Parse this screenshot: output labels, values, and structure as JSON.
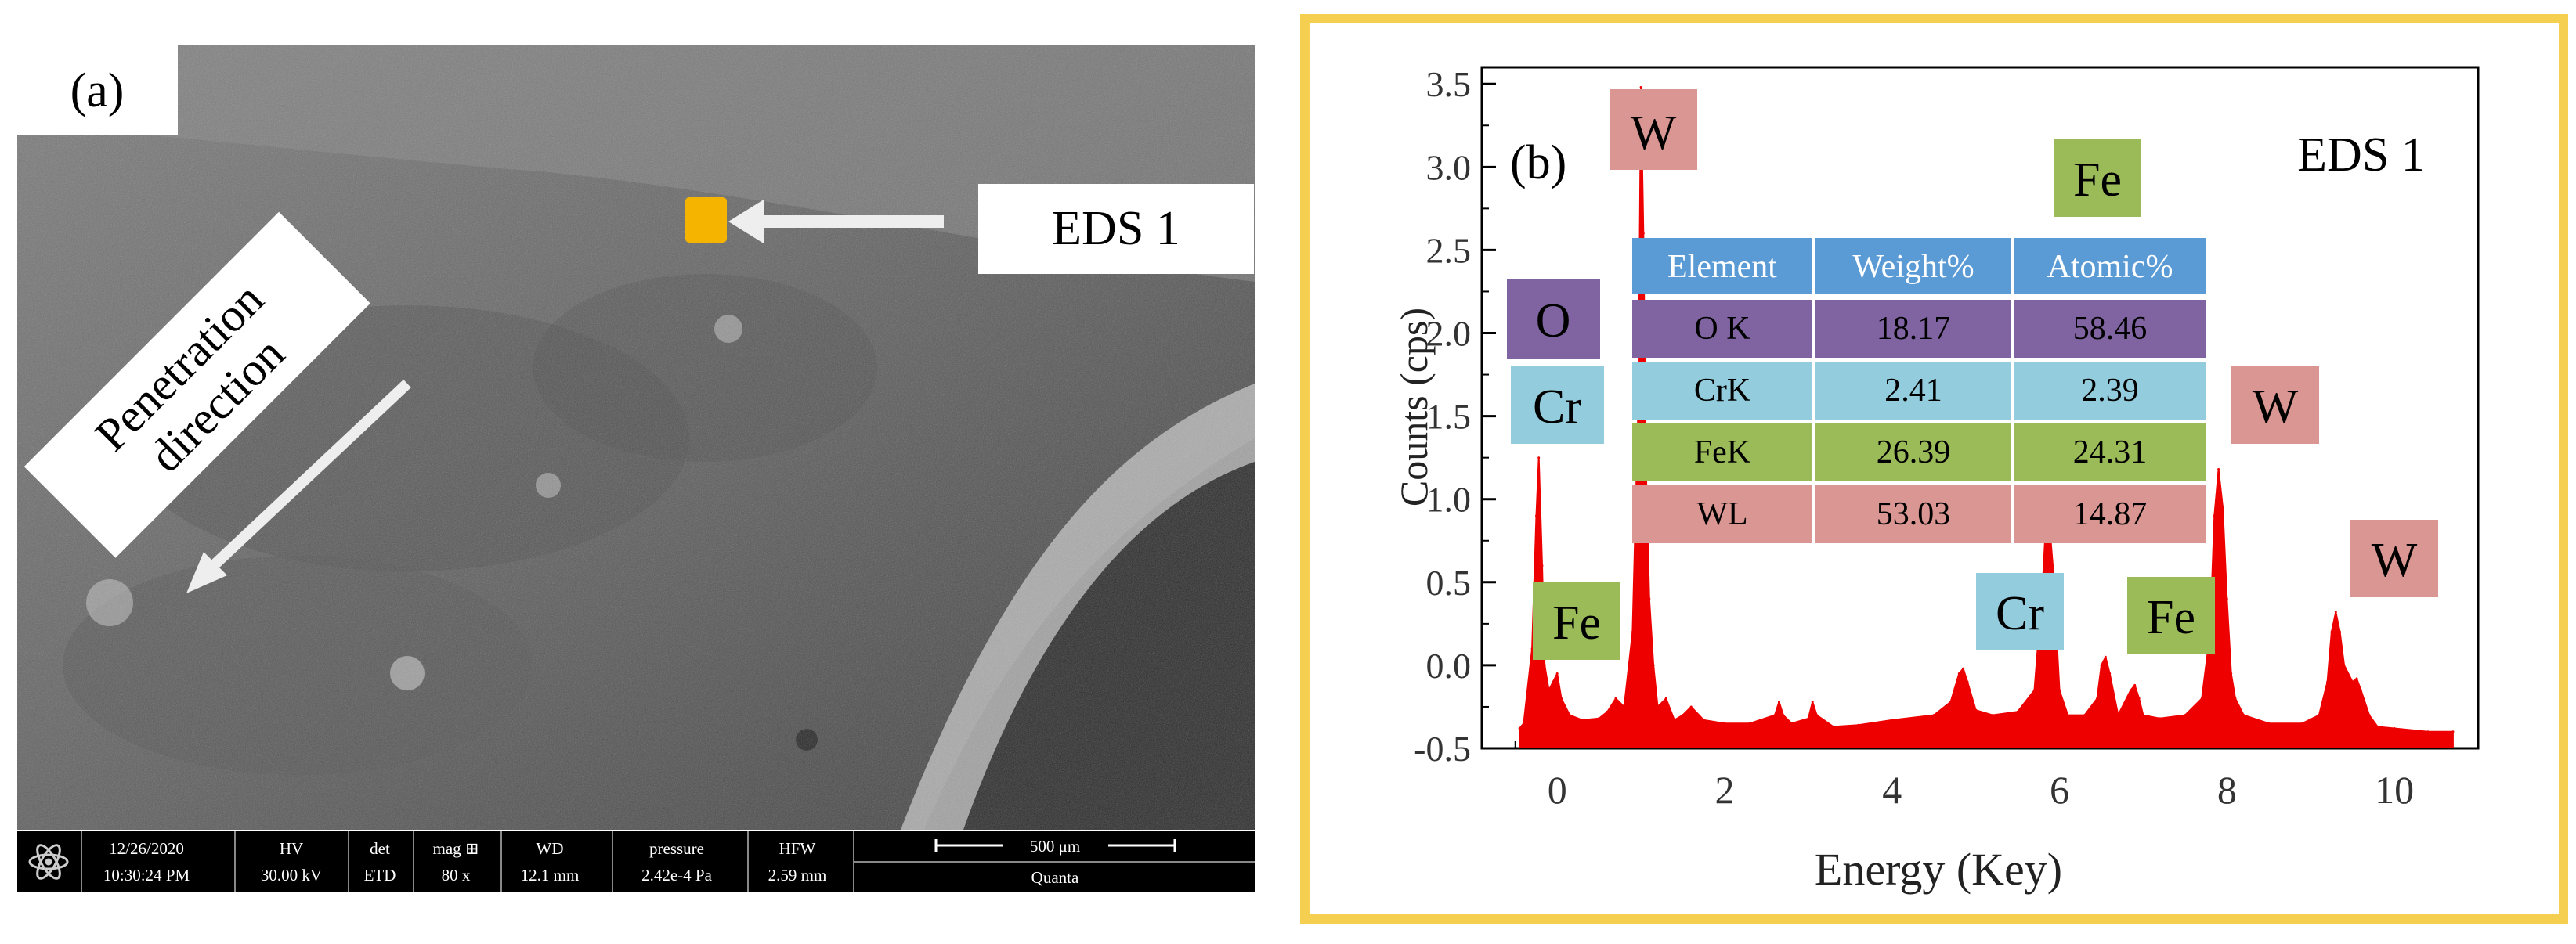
{
  "panel_a": {
    "label": "(a)",
    "eds_label": "EDS 1",
    "penetration_line1": "Penetration",
    "penetration_line2": "direction",
    "colors": {
      "marker": "#f4b400",
      "arrow": "#eeeeee"
    },
    "info_bar": {
      "icon": "atom-icon",
      "cells": [
        {
          "header": "12/26/2020",
          "value": "10:30:24 PM"
        },
        {
          "header": "HV",
          "value": "30.00 kV"
        },
        {
          "header": "det",
          "value": "ETD"
        },
        {
          "header": "mag ⊞",
          "value": "80 x"
        },
        {
          "header": "WD",
          "value": "12.1 mm"
        },
        {
          "header": "pressure",
          "value": "2.42e-4 Pa"
        },
        {
          "header": "HFW",
          "value": "2.59 mm"
        }
      ],
      "scale_label": "500 μm",
      "instrument": "Quanta"
    }
  },
  "panel_b": {
    "label": "(b)",
    "title": "EDS 1",
    "border_color": "#f5cf4f",
    "peak_labels": [
      {
        "text": "W",
        "color": "#d99692"
      },
      {
        "text": "Fe",
        "color": "#9bbb59"
      },
      {
        "text": "O",
        "color": "#8064a2"
      },
      {
        "text": "Cr",
        "color": "#93cddd"
      },
      {
        "text": "W",
        "color": "#d99692"
      },
      {
        "text": "Fe",
        "color": "#9bbb59"
      },
      {
        "text": "Cr",
        "color": "#93cddd"
      },
      {
        "text": "Fe",
        "color": "#9bbb59"
      },
      {
        "text": "W",
        "color": "#d99692"
      }
    ],
    "table": {
      "headers": [
        "Element",
        "Weight%",
        "Atomic%"
      ],
      "header_color": "#5b9bd5",
      "rows": [
        {
          "cells": [
            "O K",
            "18.17",
            "58.46"
          ],
          "color": "#8064a2"
        },
        {
          "cells": [
            "CrK",
            "2.41",
            "2.39"
          ],
          "color": "#93cddd"
        },
        {
          "cells": [
            "FeK",
            "26.39",
            "24.31"
          ],
          "color": "#9bbb59"
        },
        {
          "cells": [
            "WL",
            "53.03",
            "14.87"
          ],
          "color": "#d99692"
        }
      ]
    }
  },
  "chart_data": {
    "type": "area",
    "xlabel": "Energy (Key)",
    "ylabel": "Counts (cps)",
    "xlim": [
      -0.9,
      11.0
    ],
    "ylim": [
      -0.5,
      3.6
    ],
    "xticks": [
      "0",
      "2",
      "4",
      "6",
      "8",
      "10"
    ],
    "yticks": [
      "-0.5",
      "0.0",
      "0.5",
      "1.0",
      "1.5",
      "2.0",
      "2.5",
      "3.0",
      "3.5"
    ],
    "series": [
      {
        "color": "#ee0000",
        "x": [
          -0.45,
          -0.4,
          -0.3,
          -0.25,
          -0.22,
          -0.18,
          -0.15,
          -0.1,
          -0.05,
          0.0,
          0.05,
          0.15,
          0.3,
          0.5,
          0.6,
          0.7,
          0.8,
          0.9,
          0.97,
          1.0,
          1.03,
          1.06,
          1.1,
          1.15,
          1.2,
          1.3,
          1.4,
          1.5,
          1.6,
          1.75,
          2.0,
          2.3,
          2.6,
          2.65,
          2.7,
          2.8,
          3.0,
          3.05,
          3.1,
          3.3,
          3.6,
          4.0,
          4.5,
          4.7,
          4.8,
          4.85,
          4.9,
          5.0,
          5.2,
          5.5,
          5.7,
          5.8,
          5.85,
          5.88,
          5.92,
          6.0,
          6.1,
          6.3,
          6.45,
          6.5,
          6.55,
          6.6,
          6.7,
          6.85,
          6.9,
          6.95,
          7.0,
          7.2,
          7.5,
          7.7,
          7.8,
          7.85,
          7.9,
          7.95,
          8.0,
          8.05,
          8.1,
          8.2,
          8.5,
          8.9,
          9.1,
          9.2,
          9.25,
          9.3,
          9.35,
          9.4,
          9.5,
          9.55,
          9.6,
          9.7,
          9.8,
          10.0,
          10.4,
          10.7
        ],
        "y": [
          -0.38,
          -0.35,
          0.1,
          0.9,
          1.25,
          0.6,
          0.0,
          -0.15,
          -0.1,
          -0.05,
          -0.2,
          -0.3,
          -0.33,
          -0.32,
          -0.28,
          -0.2,
          -0.25,
          0.2,
          1.6,
          3.48,
          2.6,
          1.2,
          0.4,
          0.0,
          -0.25,
          -0.2,
          -0.33,
          -0.3,
          -0.25,
          -0.33,
          -0.35,
          -0.35,
          -0.3,
          -0.22,
          -0.3,
          -0.35,
          -0.32,
          -0.22,
          -0.3,
          -0.37,
          -0.36,
          -0.33,
          -0.3,
          -0.22,
          -0.05,
          -0.02,
          -0.1,
          -0.27,
          -0.3,
          -0.28,
          -0.15,
          0.5,
          0.98,
          0.85,
          0.6,
          -0.15,
          -0.3,
          -0.3,
          -0.2,
          0.0,
          0.05,
          -0.05,
          -0.3,
          -0.15,
          -0.12,
          -0.2,
          -0.3,
          -0.32,
          -0.3,
          -0.2,
          0.2,
          0.9,
          1.18,
          0.95,
          0.4,
          -0.05,
          -0.2,
          -0.3,
          -0.35,
          -0.35,
          -0.3,
          -0.1,
          0.2,
          0.32,
          0.2,
          0.0,
          -0.1,
          -0.08,
          -0.15,
          -0.3,
          -0.37,
          -0.38,
          -0.4,
          -0.4
        ]
      }
    ]
  }
}
